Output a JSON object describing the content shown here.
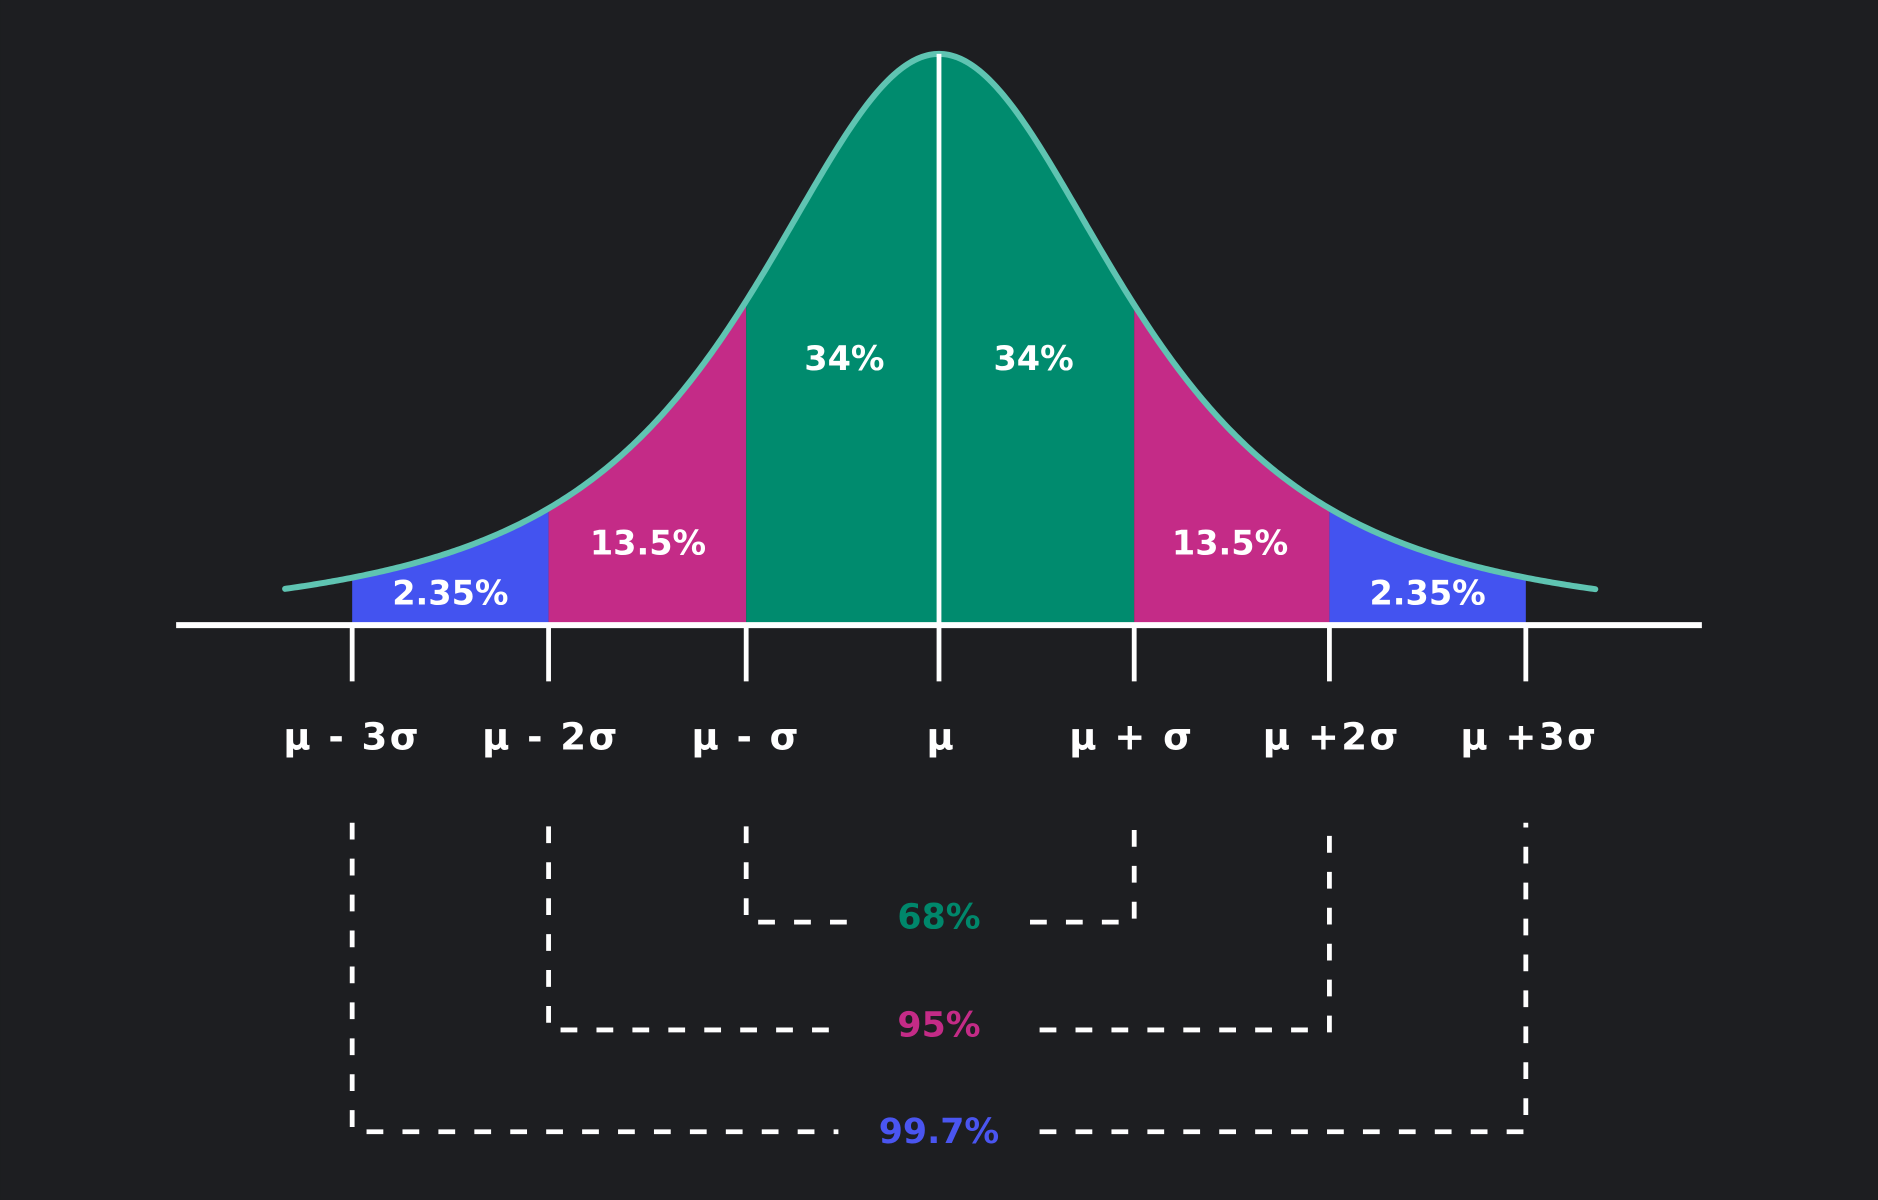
{
  "regions": [
    "2.35%",
    "13.5%",
    "34%",
    "34%",
    "13.5%",
    "2.35%"
  ],
  "axis_labels": [
    "μ - 3σ",
    "μ - 2σ",
    "μ -  σ",
    "μ",
    "μ + σ",
    "μ +2σ",
    "μ +3σ"
  ],
  "ranges": [
    "68%",
    "95%",
    "99.7%"
  ]
}
